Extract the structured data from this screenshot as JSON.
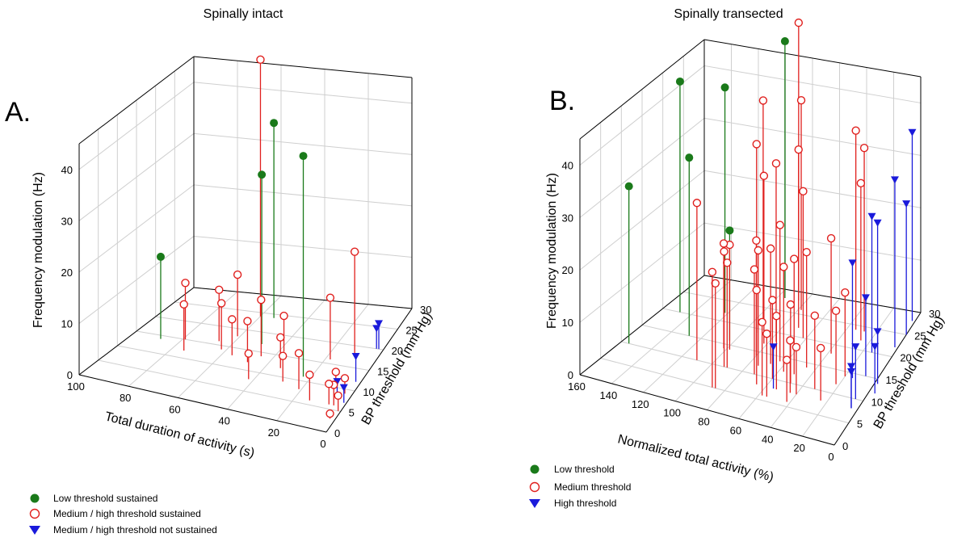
{
  "chart_data": [
    {
      "type": "scatter",
      "panel_letter": "A.",
      "title": "Spinally intact",
      "xlabel": "Total duration of activity (s)",
      "ylabel": "BP threshold (mm Hg)",
      "zlabel": "Frequency modulation (Hz)",
      "xlim": [
        0,
        100
      ],
      "ylim": [
        0,
        30
      ],
      "zlim": [
        0,
        45
      ],
      "x_ticks": [
        "0",
        "20",
        "40",
        "60",
        "80",
        "100"
      ],
      "y_ticks": [
        "0",
        "5",
        "10",
        "15",
        "20",
        "25",
        "30"
      ],
      "z_ticks": [
        "0",
        "10",
        "20",
        "30",
        "40"
      ],
      "grid": true,
      "legend_position": "bottom-left",
      "series": [
        {
          "name": "Low threshold sustained",
          "marker": "filled-circle",
          "color": "#1a7a1a",
          "points": [
            [
              88,
              14,
              16
            ],
            [
              54,
              24,
              38
            ],
            [
              23,
              11,
              43
            ],
            [
              49,
              17,
              33
            ]
          ]
        },
        {
          "name": "Medium / high threshold sustained",
          "marker": "open-circle",
          "color": "#e0201e",
          "points": [
            [
              60,
              24,
              50
            ],
            [
              79,
              15,
              11
            ],
            [
              75,
              12,
              9
            ],
            [
              66,
              16,
              10
            ],
            [
              61,
              18,
              12
            ],
            [
              62,
              14,
              9
            ],
            [
              56,
              13,
              7
            ],
            [
              48,
              12,
              8
            ],
            [
              45,
              14,
              11
            ],
            [
              42,
              8,
              5
            ],
            [
              38,
              16,
              7
            ],
            [
              34,
              12,
              6
            ],
            [
              29,
              9,
              5
            ],
            [
              21,
              8,
              7
            ],
            [
              18,
              16,
              12
            ],
            [
              14,
              6,
              5
            ],
            [
              10,
              18,
              20
            ],
            [
              8,
              10,
              3
            ],
            [
              6,
              6,
              4
            ],
            [
              4,
              6,
              4
            ],
            [
              3,
              9,
              3
            ],
            [
              1,
              5,
              3
            ],
            [
              2,
              3,
              1
            ]
          ]
        },
        {
          "name": "Medium / high threshold not sustained",
          "marker": "filled-triangle",
          "color": "#1a1adb",
          "points": [
            [
              5,
              8,
              3
            ],
            [
              2,
              12,
              5
            ],
            [
              1,
              7,
              3
            ],
            [
              2,
              20,
              5
            ],
            [
              3,
              20,
              4
            ]
          ]
        }
      ]
    },
    {
      "type": "scatter",
      "panel_letter": "B.",
      "title": "Spinally transected",
      "xlabel": "Normalized total activity (%)",
      "ylabel": "BP threshold (mm Hg)",
      "zlabel": "Frequency modulation (Hz)",
      "xlim": [
        0,
        160
      ],
      "ylim": [
        0,
        30
      ],
      "zlim": [
        0,
        45
      ],
      "x_ticks": [
        "0",
        "20",
        "40",
        "60",
        "80",
        "100",
        "120",
        "140",
        "160"
      ],
      "y_ticks": [
        "0",
        "5",
        "10",
        "15",
        "20",
        "25",
        "30"
      ],
      "z_ticks": [
        "0",
        "10",
        "20",
        "30",
        "40"
      ],
      "grid": true,
      "legend_position": "bottom-left",
      "series": [
        {
          "name": "Low threshold",
          "marker": "filled-circle",
          "color": "#1a7a1a",
          "points": [
            [
              155,
              10,
              30
            ],
            [
              148,
              20,
              44
            ],
            [
              128,
              15,
              34
            ],
            [
              122,
              22,
              43
            ],
            [
              103,
              16,
              21
            ],
            [
              95,
              28,
              49
            ]
          ]
        },
        {
          "name": "Medium threshold",
          "marker": "open-circle",
          "color": "#e0201e",
          "points": [
            [
              110,
              10,
              30
            ],
            [
              102,
              14,
              20
            ],
            [
              98,
              14,
              20
            ],
            [
              95,
              22,
              42
            ],
            [
              92,
              19,
              36
            ],
            [
              92,
              10,
              22
            ],
            [
              90,
              10,
              20
            ],
            [
              88,
              5,
              22
            ],
            [
              86,
              5,
              20
            ],
            [
              85,
              28,
              53
            ],
            [
              82,
              17,
              32
            ],
            [
              80,
              14,
              22
            ],
            [
              78,
              26,
              40
            ],
            [
              76,
              18,
              34
            ],
            [
              74,
              12,
              22
            ],
            [
              72,
              10,
              20
            ],
            [
              70,
              22,
              34
            ],
            [
              68,
              13,
              22
            ],
            [
              66,
              8,
              18
            ],
            [
              64,
              14,
              26
            ],
            [
              62,
              20,
              28
            ],
            [
              60,
              10,
              15
            ],
            [
              58,
              6,
              14
            ],
            [
              57,
              12,
              20
            ],
            [
              55,
              6,
              12
            ],
            [
              53,
              8,
              14
            ],
            [
              50,
              12,
              22
            ],
            [
              48,
              10,
              15
            ],
            [
              46,
              14,
              22
            ],
            [
              44,
              8,
              10
            ],
            [
              42,
              6,
              8
            ],
            [
              40,
              8,
              9
            ],
            [
              38,
              18,
              22
            ],
            [
              34,
              24,
              38
            ],
            [
              32,
              10,
              14
            ],
            [
              28,
              24,
              35
            ],
            [
              26,
              22,
              30
            ],
            [
              24,
              8,
              10
            ],
            [
              22,
              12,
              14
            ],
            [
              20,
              14,
              16
            ]
          ]
        },
        {
          "name": "High threshold",
          "marker": "filled-triangle",
          "color": "#1a1adb",
          "points": [
            [
              55,
              8,
              8
            ],
            [
              15,
              14,
              22
            ],
            [
              14,
              20,
              26
            ],
            [
              10,
              20,
              25
            ],
            [
              8,
              15,
              15
            ],
            [
              5,
              10,
              10
            ],
            [
              4,
              8,
              8
            ],
            [
              4,
              8,
              7
            ],
            [
              2,
              22,
              32
            ],
            [
              2,
              28,
              36
            ],
            [
              0,
              25,
              25
            ],
            [
              -2,
              14,
              10
            ],
            [
              -4,
              12,
              9
            ]
          ]
        }
      ]
    }
  ]
}
